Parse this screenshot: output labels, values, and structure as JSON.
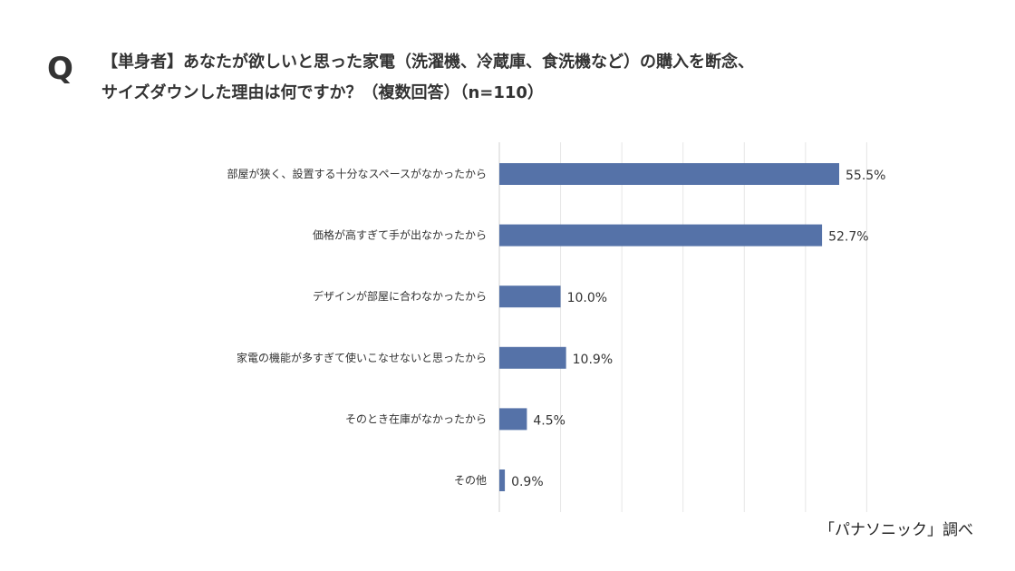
{
  "question_mark": "Q",
  "title_line1": "【単身者】あなたが欲しいと思った家電（洗濯機、冷蔵庫、食洗機など）の購入を断念、",
  "title_line2": "サイズダウンした理由は何ですか？（複数回答）（n=110）",
  "source": "「パナソニック」調べ",
  "chart_data": {
    "type": "bar",
    "orientation": "horizontal",
    "categories": [
      "部屋が狭く、設置する十分なスペースがなかったから",
      "価格が高すぎて手が出なかったから",
      "デザインが部屋に合わなかったから",
      "家電の機能が多すぎて使いこなせないと思ったから",
      "そのとき在庫がなかったから",
      "その他"
    ],
    "values": [
      55.5,
      52.7,
      10.0,
      10.9,
      4.5,
      0.9
    ],
    "data_labels": [
      "55.5%",
      "52.7%",
      "10.0%",
      "10.9%",
      "4.5%",
      "0.9%"
    ],
    "xlim": [
      0,
      60
    ],
    "grid": true,
    "grid_step": 10,
    "color": "#5572a8"
  }
}
